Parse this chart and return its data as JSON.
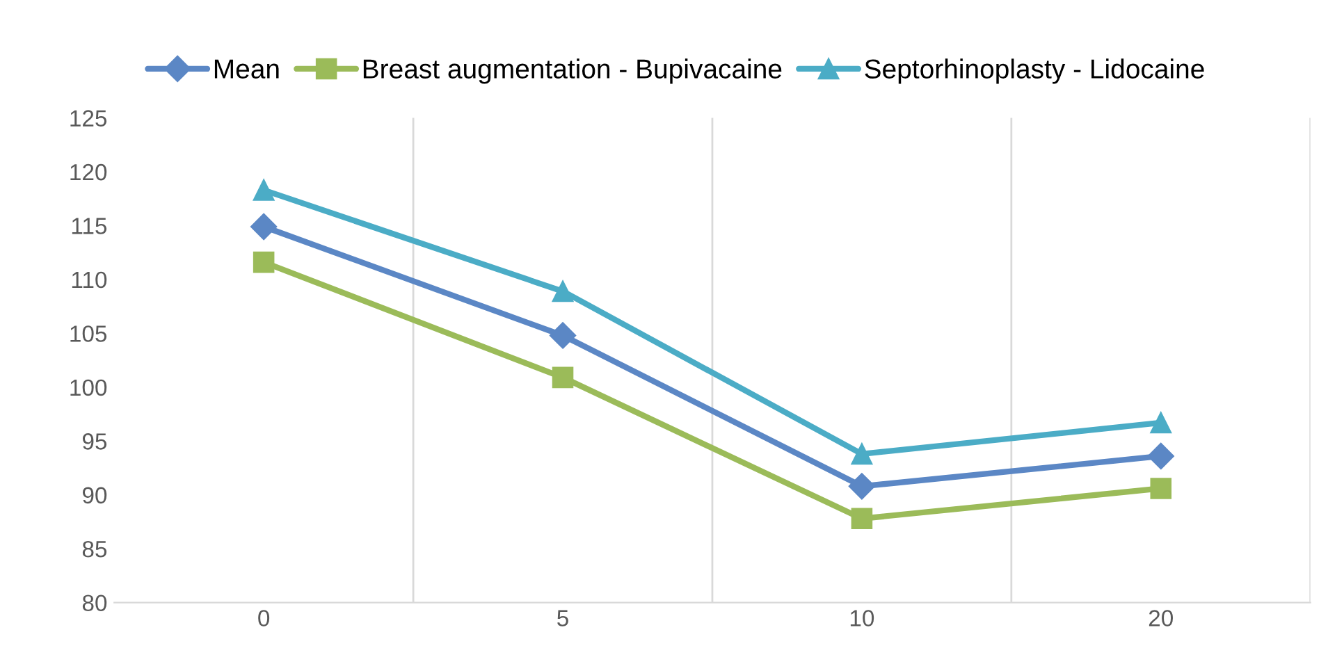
{
  "chart_data": {
    "type": "line",
    "categories": [
      "0",
      "5",
      "10",
      "20"
    ],
    "series": [
      {
        "name": "Mean",
        "color": "#5b87c5",
        "marker": "diamond",
        "values": [
          114.9,
          104.8,
          90.8,
          93.6
        ]
      },
      {
        "name": "Breast augmentation - Bupivacaine",
        "color": "#9bbb59",
        "marker": "square",
        "values": [
          111.6,
          100.9,
          87.8,
          90.6
        ]
      },
      {
        "name": "Septorhinoplasty - Lidocaine",
        "color": "#4bacc6",
        "marker": "triangle",
        "values": [
          118.3,
          108.9,
          93.8,
          96.7
        ]
      }
    ],
    "ylim": [
      80,
      125
    ],
    "yticks": [
      80,
      85,
      90,
      95,
      100,
      105,
      110,
      115,
      120,
      125
    ],
    "grid": "x",
    "legend": "top",
    "line_style": "solid"
  }
}
